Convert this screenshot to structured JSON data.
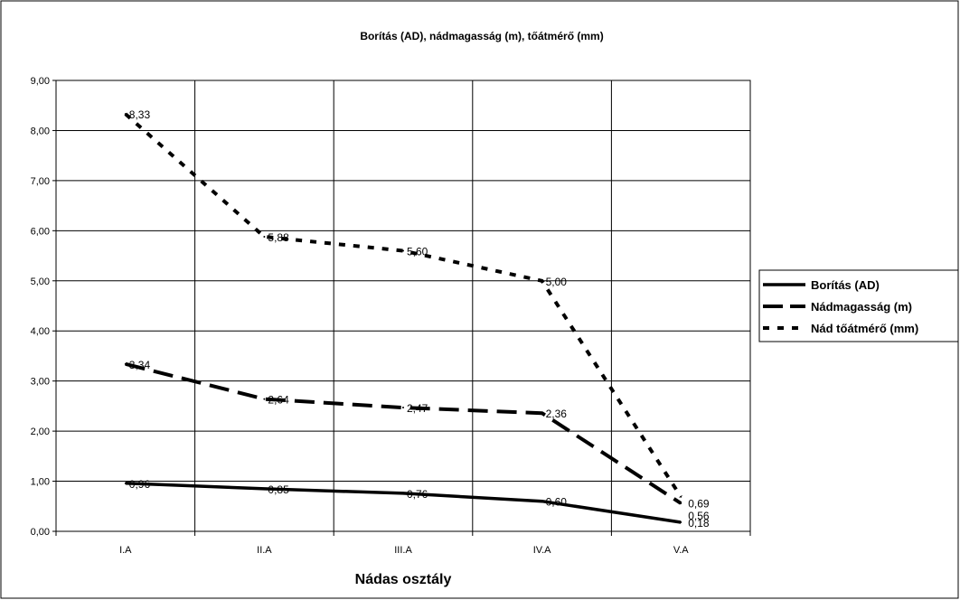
{
  "chart_data": {
    "type": "line",
    "title": "Borítás (AD), nádmagasság (m), tőátmérő (mm)",
    "xlabel": "Nádas osztály",
    "ylabel": "",
    "categories": [
      "I.A",
      "II.A",
      "III.A",
      "IV.A",
      "V.A"
    ],
    "ylim": [
      0,
      9
    ],
    "yticks": [
      "0,00",
      "1,00",
      "2,00",
      "3,00",
      "4,00",
      "5,00",
      "6,00",
      "7,00",
      "8,00",
      "9,00"
    ],
    "grid": true,
    "legend_position": "right",
    "series": [
      {
        "name": "Borítás (AD)",
        "style": "solid",
        "color": "#000000",
        "values": [
          0.96,
          0.85,
          0.76,
          0.6,
          0.18
        ],
        "labels": [
          "0,96",
          "0,85",
          "0,76",
          "0,60",
          "0,18"
        ]
      },
      {
        "name": "Nádmagasság (m)",
        "style": "long-dash",
        "color": "#000000",
        "values": [
          3.34,
          2.64,
          2.47,
          2.36,
          0.56
        ],
        "labels": [
          "3,34",
          "2,64",
          "2,47",
          "2,36",
          "0,56"
        ]
      },
      {
        "name": "Nád tőátmérő (mm)",
        "style": "short-dash",
        "color": "#000000",
        "values": [
          8.33,
          5.88,
          5.6,
          5.0,
          0.69
        ],
        "labels": [
          "8,33",
          "5,88",
          "5,60",
          "5,00",
          "0,69"
        ]
      }
    ]
  }
}
